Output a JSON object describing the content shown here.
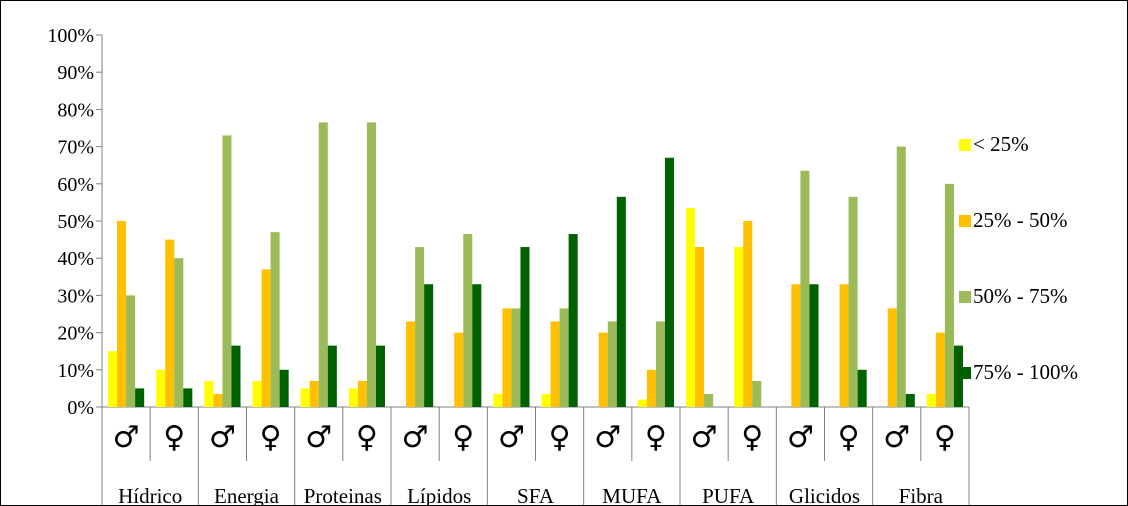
{
  "chart_data": {
    "type": "bar",
    "title": "",
    "xlabel": "",
    "ylabel": "",
    "ylim": [
      0,
      100
    ],
    "yticks": [
      "0%",
      "10%",
      "20%",
      "30%",
      "40%",
      "50%",
      "60%",
      "70%",
      "80%",
      "90%",
      "100%"
    ],
    "grid": false,
    "legend_position": "right",
    "groups": [
      "Hídrico",
      "Energia",
      "Proteinas",
      "Lípidos",
      "SFA",
      "MUFA",
      "PUFA",
      "Glicidos",
      "Fibra"
    ],
    "sex_labels": [
      "♂",
      "♀"
    ],
    "categories": [
      "Hídrico ♂",
      "Hídrico ♀",
      "Energia ♂",
      "Energia ♀",
      "Proteinas ♂",
      "Proteinas ♀",
      "Lípidos ♂",
      "Lípidos ♀",
      "SFA ♂",
      "SFA ♀",
      "MUFA ♂",
      "MUFA ♀",
      "PUFA ♂",
      "PUFA ♀",
      "Glicidos ♂",
      "Glicidos ♀",
      "Fibra ♂",
      "Fibra ♀"
    ],
    "series": [
      {
        "name": "< 25%",
        "color": "#ffff00",
        "values": [
          15,
          10,
          7,
          7,
          5,
          5,
          0,
          0,
          3.5,
          3.5,
          0,
          2,
          53.5,
          43,
          0,
          0,
          0,
          3.5
        ]
      },
      {
        "name": "25% - 50%",
        "color": "#ffc000",
        "values": [
          50,
          45,
          3.5,
          37,
          7,
          7,
          23,
          20,
          26.5,
          23,
          20,
          10,
          43,
          50,
          33,
          33,
          26.5,
          20
        ]
      },
      {
        "name": "50% - 75%",
        "color": "#9bbb59",
        "values": [
          30,
          40,
          73,
          47,
          76.5,
          76.5,
          43,
          46.5,
          26.5,
          26.5,
          23,
          23,
          3.5,
          7,
          63.5,
          56.5,
          70,
          60
        ]
      },
      {
        "name": "75% - 100%",
        "color": "#006100",
        "values": [
          5,
          5,
          16.5,
          10,
          16.5,
          16.5,
          33,
          33,
          43,
          46.5,
          56.5,
          67,
          0,
          0,
          33,
          10,
          3.5,
          16.5
        ]
      }
    ]
  }
}
